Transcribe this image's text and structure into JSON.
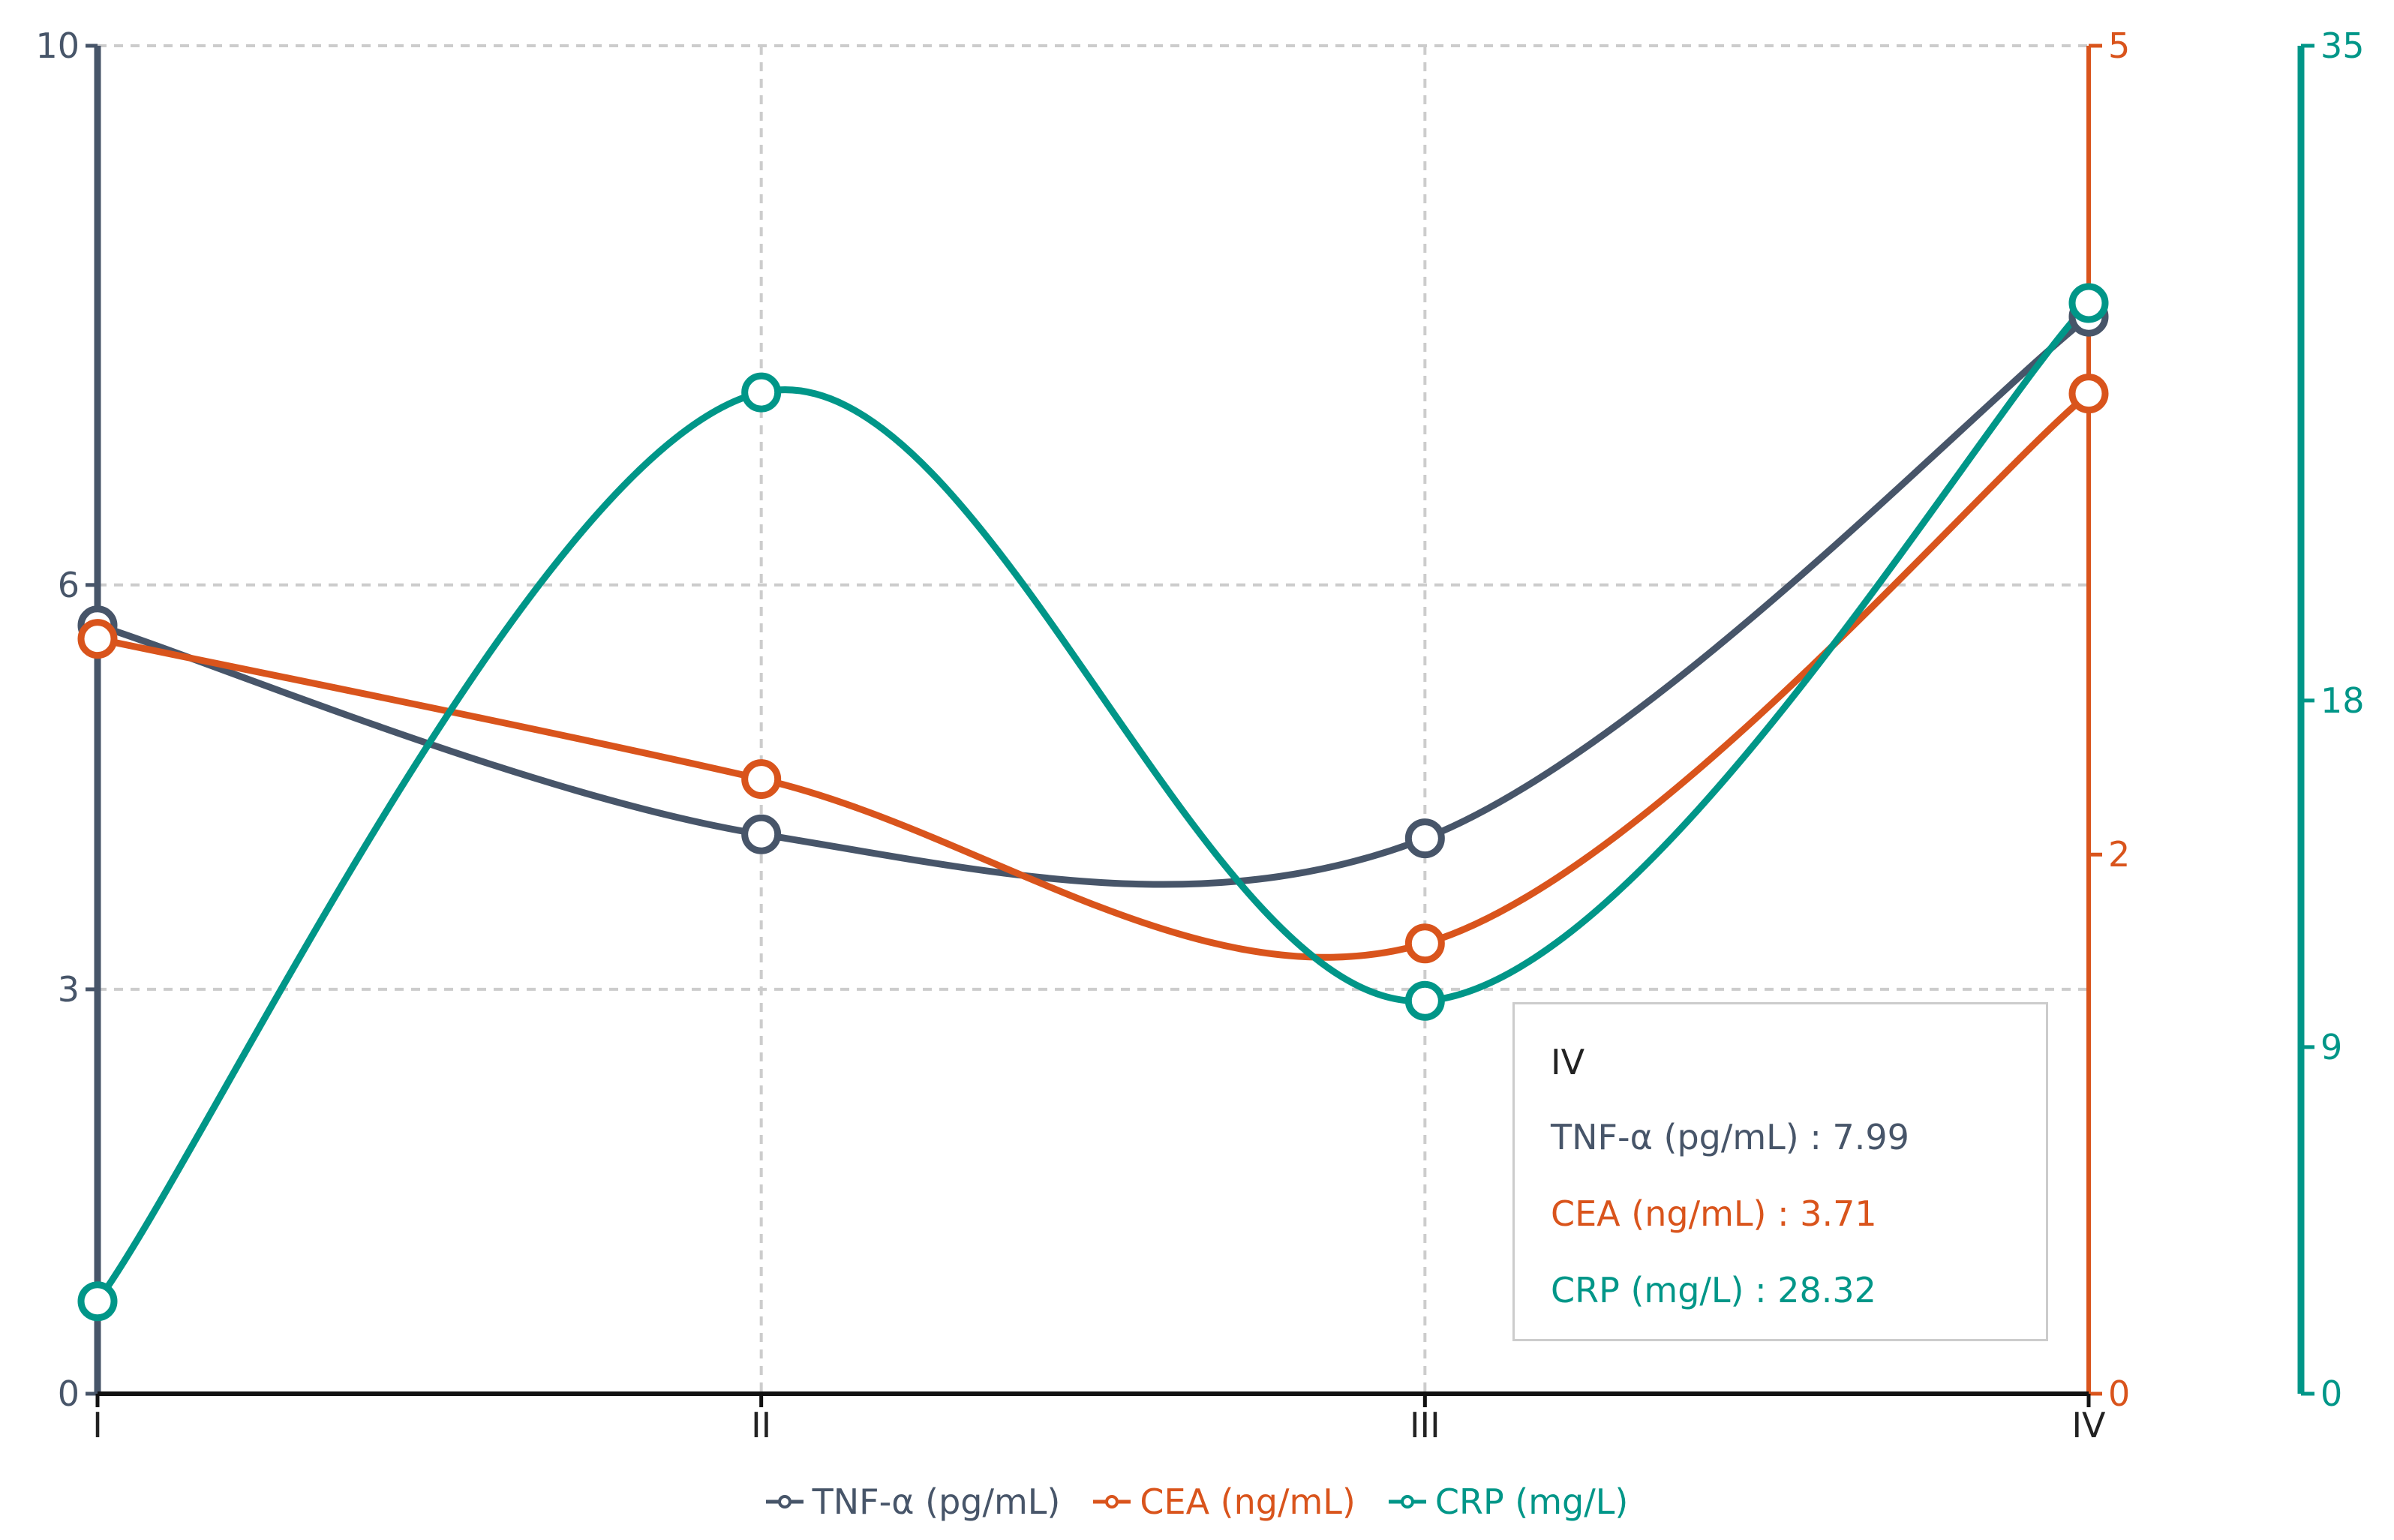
{
  "chart_data": {
    "type": "line",
    "categories": [
      "I",
      "II",
      "III",
      "IV"
    ],
    "series": [
      {
        "name": "TNF-α (pg/mL)",
        "axis": "left",
        "color": "#475569",
        "values": [
          5.7,
          4.15,
          4.12,
          7.99
        ]
      },
      {
        "name": "CEA (ng/mL)",
        "axis": "right1",
        "color": "#d9541c",
        "values": [
          2.8,
          2.28,
          1.67,
          3.71
        ]
      },
      {
        "name": "CRP (mg/L)",
        "axis": "right2",
        "color": "#009688",
        "values": [
          2.4,
          26.0,
          10.2,
          28.32
        ]
      }
    ],
    "axes": {
      "left": {
        "min": 0,
        "max": 10,
        "ticks": [
          0,
          3,
          6,
          10
        ],
        "labels": [
          "0",
          "3",
          "6",
          "10"
        ],
        "color": "#475569"
      },
      "right1": {
        "min": 0,
        "max": 5,
        "ticks": [
          0,
          2,
          5
        ],
        "labels": [
          "0",
          "2",
          "5"
        ],
        "color": "#d9541c"
      },
      "right2": {
        "min": 0,
        "max": 35,
        "ticks": [
          0,
          9,
          18,
          35
        ],
        "labels": [
          "0",
          "9",
          "18",
          "35"
        ],
        "color": "#009688"
      }
    },
    "grid": true,
    "legend_position": "bottom-center"
  },
  "tooltip": {
    "title": "IV",
    "rows": [
      {
        "text": "TNF-α (pg/mL) : 7.99",
        "color": "#475569"
      },
      {
        "text": "CEA (ng/mL) : 3.71",
        "color": "#d9541c"
      },
      {
        "text": "CRP (mg/L) : 28.32",
        "color": "#009688"
      }
    ]
  },
  "legend": [
    {
      "label": "TNF-α (pg/mL)",
      "color": "#475569"
    },
    {
      "label": "CEA (ng/mL)",
      "color": "#d9541c"
    },
    {
      "label": "CRP (mg/L)",
      "color": "#009688"
    }
  ]
}
